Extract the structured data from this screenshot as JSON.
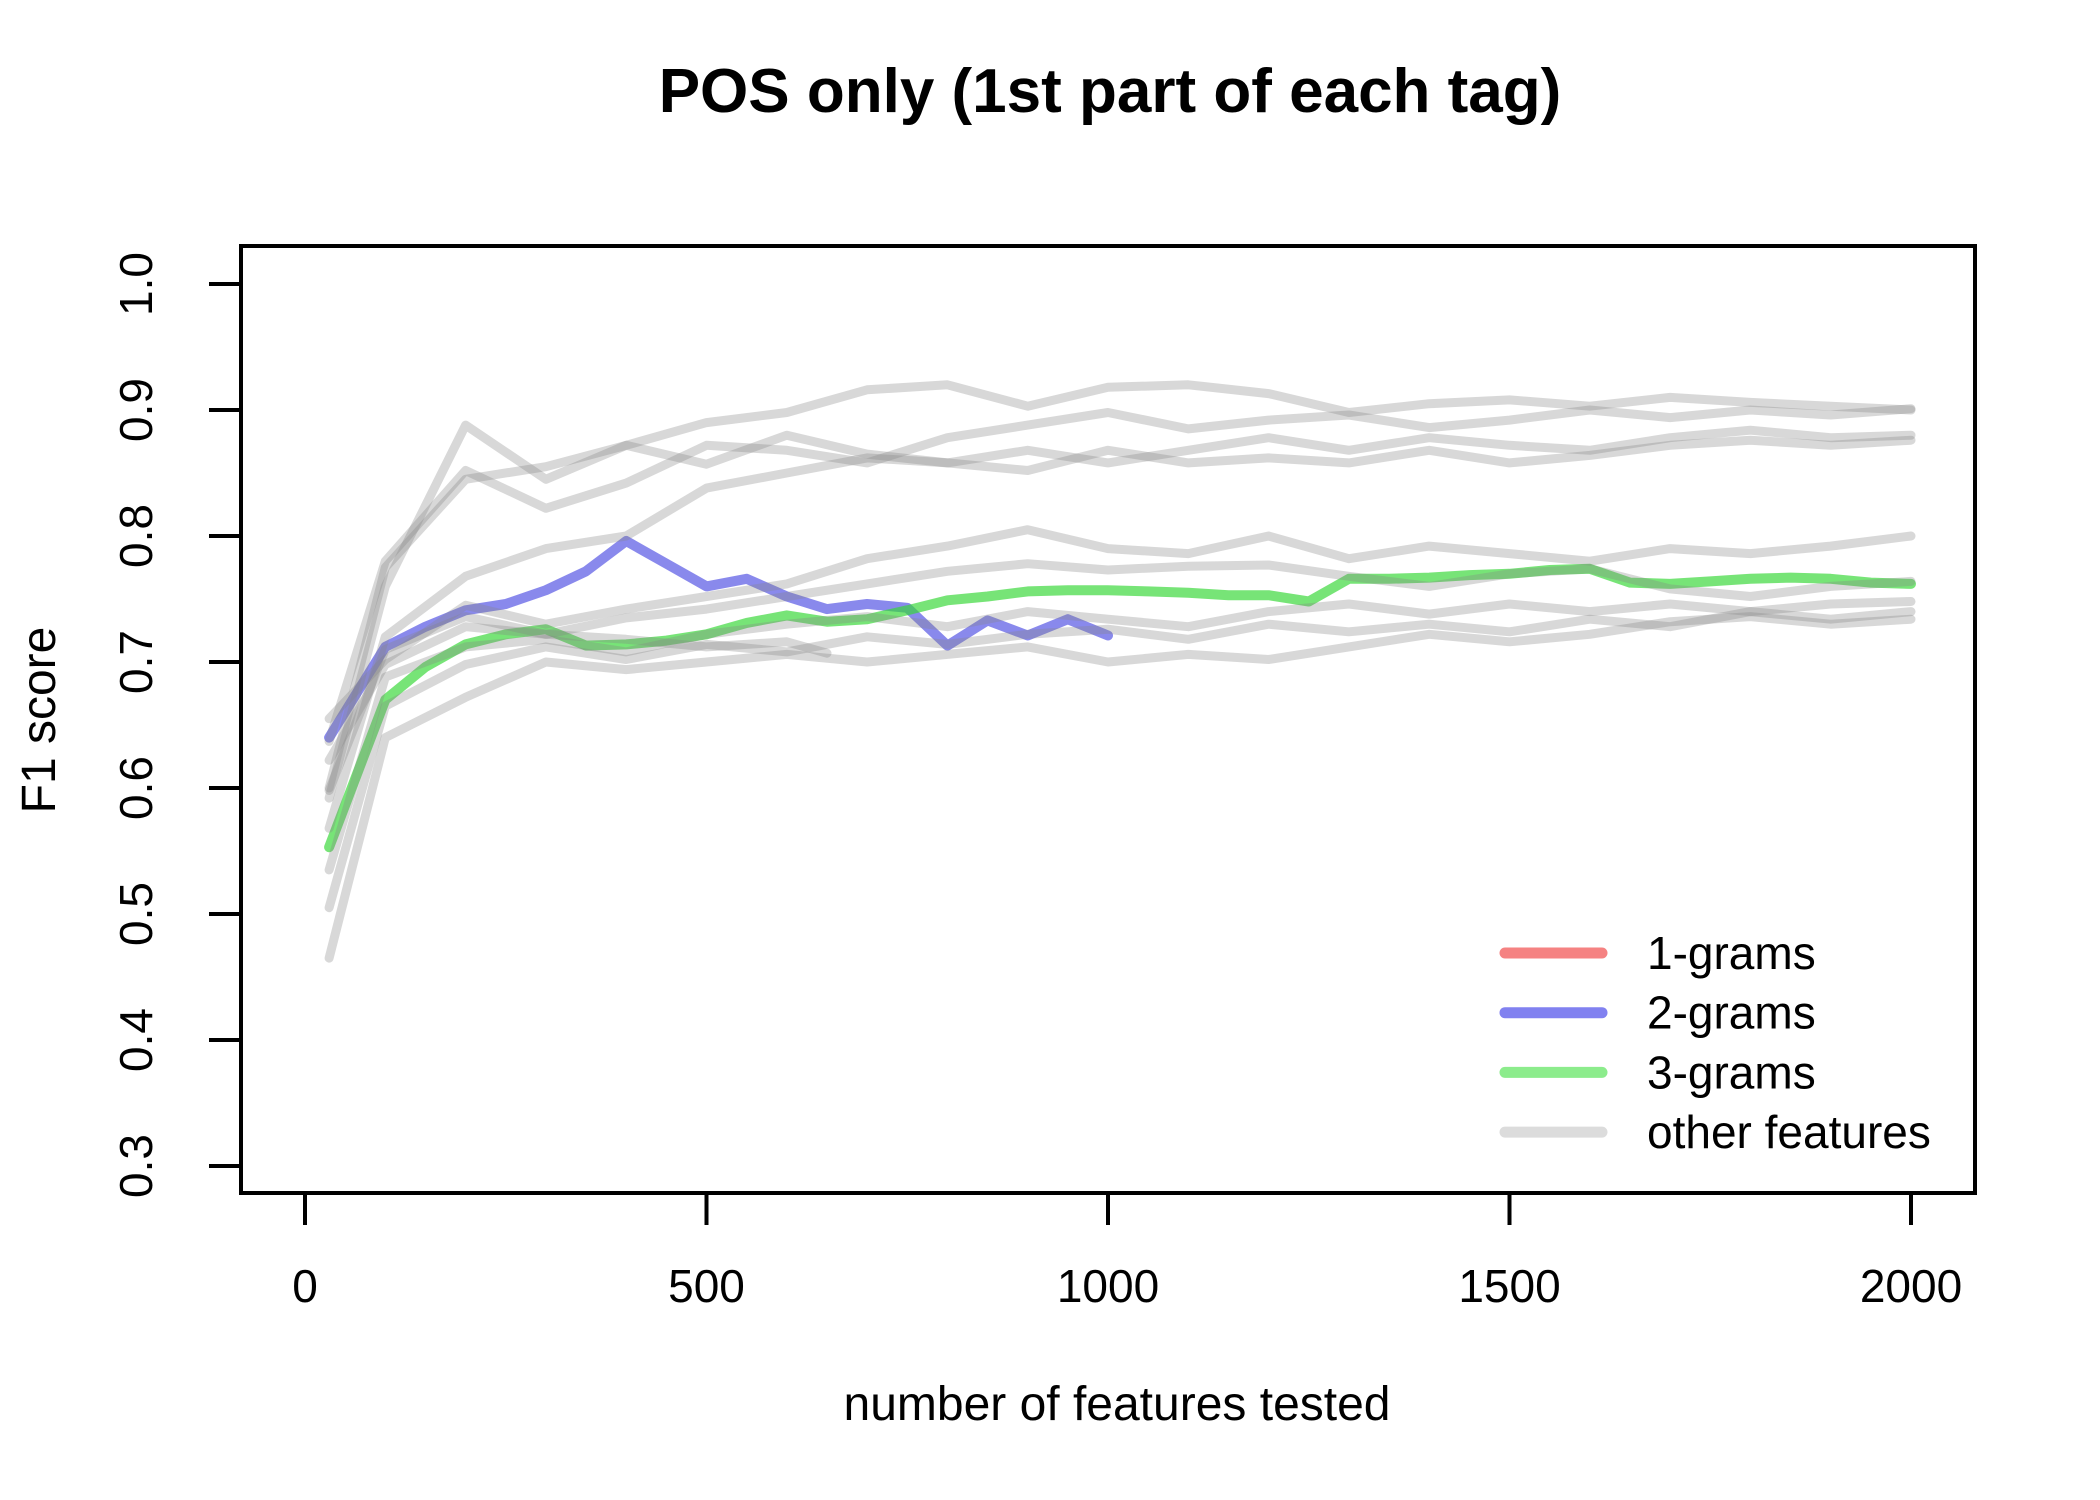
{
  "chart": {
    "title": "POS only (1st part of each tag)",
    "xlabel": "number of features tested",
    "ylabel": "F1 score"
  },
  "chart_data": {
    "type": "line",
    "title": "POS only (1st part of each tag)",
    "xlabel": "number of features tested",
    "ylabel": "F1 score",
    "grid": false,
    "background": "#ffffff",
    "frame_color": "#000000",
    "x_axis": {
      "ticks": [
        0,
        500,
        1000,
        1500,
        2000
      ],
      "range": [
        -80,
        2080
      ]
    },
    "y_axis": {
      "ticks": [
        {
          "v": 0.3,
          "label": "0.3"
        },
        {
          "v": 0.4,
          "label": "0.4"
        },
        {
          "v": 0.5,
          "label": "0.5"
        },
        {
          "v": 0.6,
          "label": "0.6"
        },
        {
          "v": 0.7,
          "label": "0.7"
        },
        {
          "v": 0.8,
          "label": "0.8"
        },
        {
          "v": 0.9,
          "label": "0.9"
        },
        {
          "v": 1.0,
          "label": "1.0"
        }
      ],
      "range": [
        0.272,
        1.028
      ]
    },
    "legend": {
      "position": "bottom-right",
      "entries": [
        {
          "label": "1-grams",
          "color": "#f58282"
        },
        {
          "label": "2-grams",
          "color": "#8181f0"
        },
        {
          "label": "3-grams",
          "color": "#8cec8c"
        },
        {
          "label": "other features",
          "color": "#dcdcdc"
        }
      ]
    },
    "series": [
      {
        "name": "1-grams",
        "color": "#f58282",
        "visible_in_plot": false,
        "points": []
      },
      {
        "name": "2-grams",
        "color": "rgba(65,65,225,0.62)",
        "visible_in_plot": true,
        "points": [
          [
            30,
            0.64
          ],
          [
            100,
            0.712
          ],
          [
            150,
            0.728
          ],
          [
            200,
            0.741
          ],
          [
            250,
            0.746
          ],
          [
            300,
            0.757
          ],
          [
            350,
            0.772
          ],
          [
            400,
            0.796
          ],
          [
            450,
            0.778
          ],
          [
            500,
            0.76
          ],
          [
            550,
            0.766
          ],
          [
            600,
            0.752
          ],
          [
            650,
            0.742
          ],
          [
            700,
            0.746
          ],
          [
            750,
            0.743
          ],
          [
            800,
            0.713
          ],
          [
            850,
            0.733
          ],
          [
            900,
            0.721
          ],
          [
            950,
            0.734
          ],
          [
            1000,
            0.721
          ]
        ]
      },
      {
        "name": "3-grams",
        "color": "rgba(55,215,55,0.68)",
        "visible_in_plot": true,
        "points": [
          [
            30,
            0.553
          ],
          [
            100,
            0.67
          ],
          [
            150,
            0.696
          ],
          [
            200,
            0.714
          ],
          [
            250,
            0.722
          ],
          [
            300,
            0.726
          ],
          [
            350,
            0.713
          ],
          [
            400,
            0.714
          ],
          [
            450,
            0.717
          ],
          [
            500,
            0.722
          ],
          [
            550,
            0.731
          ],
          [
            600,
            0.737
          ],
          [
            650,
            0.732
          ],
          [
            700,
            0.734
          ],
          [
            750,
            0.741
          ],
          [
            800,
            0.749
          ],
          [
            850,
            0.752
          ],
          [
            900,
            0.756
          ],
          [
            950,
            0.757
          ],
          [
            1000,
            0.757
          ],
          [
            1050,
            0.756
          ],
          [
            1100,
            0.755
          ],
          [
            1150,
            0.753
          ],
          [
            1200,
            0.753
          ],
          [
            1250,
            0.748
          ],
          [
            1300,
            0.766
          ],
          [
            1350,
            0.766
          ],
          [
            1400,
            0.767
          ],
          [
            1450,
            0.769
          ],
          [
            1500,
            0.77
          ],
          [
            1550,
            0.773
          ],
          [
            1600,
            0.774
          ],
          [
            1650,
            0.763
          ],
          [
            1700,
            0.762
          ],
          [
            1750,
            0.764
          ],
          [
            1800,
            0.766
          ],
          [
            1850,
            0.767
          ],
          [
            1900,
            0.766
          ],
          [
            1950,
            0.763
          ],
          [
            2000,
            0.762
          ]
        ]
      },
      {
        "name": "other features",
        "color": "rgba(135,135,135,0.32)",
        "visible_in_plot": true,
        "lines": [
          [
            [
              30,
              0.6
            ],
            [
              100,
              0.775
            ],
            [
              200,
              0.845
            ],
            [
              300,
              0.855
            ],
            [
              400,
              0.872
            ],
            [
              500,
              0.89
            ],
            [
              600,
              0.898
            ],
            [
              700,
              0.916
            ],
            [
              800,
              0.92
            ],
            [
              900,
              0.903
            ],
            [
              1000,
              0.918
            ],
            [
              1100,
              0.92
            ],
            [
              1200,
              0.913
            ],
            [
              1300,
              0.898
            ],
            [
              1400,
              0.905
            ],
            [
              1500,
              0.908
            ],
            [
              1600,
              0.903
            ],
            [
              1700,
              0.91
            ],
            [
              1800,
              0.906
            ],
            [
              1900,
              0.903
            ],
            [
              2000,
              0.9
            ]
          ],
          [
            [
              30,
              0.637
            ],
            [
              100,
              0.78
            ],
            [
              200,
              0.852
            ],
            [
              300,
              0.822
            ],
            [
              400,
              0.842
            ],
            [
              500,
              0.872
            ],
            [
              600,
              0.868
            ],
            [
              700,
              0.858
            ],
            [
              800,
              0.878
            ],
            [
              900,
              0.888
            ],
            [
              1000,
              0.898
            ],
            [
              1100,
              0.885
            ],
            [
              1200,
              0.892
            ],
            [
              1300,
              0.896
            ],
            [
              1400,
              0.886
            ],
            [
              1500,
              0.892
            ],
            [
              1600,
              0.9
            ],
            [
              1700,
              0.894
            ],
            [
              1800,
              0.9
            ],
            [
              1900,
              0.896
            ],
            [
              2000,
              0.901
            ]
          ],
          [
            [
              30,
              0.592
            ],
            [
              100,
              0.76
            ],
            [
              200,
              0.888
            ],
            [
              300,
              0.845
            ],
            [
              400,
              0.872
            ],
            [
              500,
              0.857
            ],
            [
              600,
              0.88
            ],
            [
              700,
              0.865
            ],
            [
              800,
              0.858
            ],
            [
              900,
              0.868
            ],
            [
              1000,
              0.858
            ],
            [
              1100,
              0.868
            ],
            [
              1200,
              0.878
            ],
            [
              1300,
              0.868
            ],
            [
              1400,
              0.878
            ],
            [
              1500,
              0.872
            ],
            [
              1600,
              0.868
            ],
            [
              1700,
              0.878
            ],
            [
              1800,
              0.884
            ],
            [
              1900,
              0.878
            ],
            [
              2000,
              0.88
            ]
          ],
          [
            [
              30,
              0.568
            ],
            [
              100,
              0.72
            ],
            [
              200,
              0.768
            ],
            [
              300,
              0.79
            ],
            [
              400,
              0.8
            ],
            [
              500,
              0.838
            ],
            [
              600,
              0.85
            ],
            [
              700,
              0.862
            ],
            [
              800,
              0.858
            ],
            [
              900,
              0.852
            ],
            [
              1000,
              0.868
            ],
            [
              1100,
              0.858
            ],
            [
              1200,
              0.862
            ],
            [
              1300,
              0.858
            ],
            [
              1400,
              0.868
            ],
            [
              1500,
              0.858
            ],
            [
              1600,
              0.864
            ],
            [
              1700,
              0.872
            ],
            [
              1800,
              0.876
            ],
            [
              1900,
              0.872
            ],
            [
              2000,
              0.876
            ]
          ],
          [
            [
              30,
              0.655
            ],
            [
              100,
              0.702
            ],
            [
              200,
              0.745
            ],
            [
              300,
              0.73
            ],
            [
              400,
              0.742
            ],
            [
              500,
              0.752
            ],
            [
              600,
              0.762
            ],
            [
              700,
              0.782
            ],
            [
              800,
              0.792
            ],
            [
              900,
              0.805
            ],
            [
              1000,
              0.79
            ],
            [
              1100,
              0.786
            ],
            [
              1200,
              0.8
            ],
            [
              1300,
              0.782
            ],
            [
              1400,
              0.792
            ],
            [
              1500,
              0.786
            ],
            [
              1600,
              0.78
            ],
            [
              1700,
              0.79
            ],
            [
              1800,
              0.786
            ],
            [
              1900,
              0.792
            ],
            [
              2000,
              0.8
            ]
          ],
          [
            [
              30,
              0.622
            ],
            [
              100,
              0.698
            ],
            [
              200,
              0.728
            ],
            [
              300,
              0.722
            ],
            [
              400,
              0.735
            ],
            [
              500,
              0.742
            ],
            [
              600,
              0.752
            ],
            [
              700,
              0.762
            ],
            [
              800,
              0.772
            ],
            [
              900,
              0.778
            ],
            [
              1000,
              0.773
            ],
            [
              1100,
              0.776
            ],
            [
              1200,
              0.777
            ],
            [
              1300,
              0.768
            ],
            [
              1400,
              0.76
            ],
            [
              1500,
              0.77
            ],
            [
              1600,
              0.774
            ],
            [
              1700,
              0.758
            ],
            [
              1800,
              0.752
            ],
            [
              1900,
              0.76
            ],
            [
              2000,
              0.764
            ]
          ],
          [
            [
              30,
              0.535
            ],
            [
              100,
              0.688
            ],
            [
              200,
              0.712
            ],
            [
              300,
              0.718
            ],
            [
              400,
              0.708
            ],
            [
              500,
              0.722
            ],
            [
              600,
              0.73
            ],
            [
              700,
              0.736
            ],
            [
              800,
              0.728
            ],
            [
              900,
              0.74
            ],
            [
              1000,
              0.734
            ],
            [
              1100,
              0.728
            ],
            [
              1200,
              0.74
            ],
            [
              1300,
              0.746
            ],
            [
              1400,
              0.738
            ],
            [
              1500,
              0.746
            ],
            [
              1600,
              0.74
            ],
            [
              1700,
              0.746
            ],
            [
              1800,
              0.74
            ],
            [
              1900,
              0.746
            ],
            [
              2000,
              0.748
            ]
          ],
          [
            [
              30,
              0.505
            ],
            [
              100,
              0.665
            ],
            [
              200,
              0.698
            ],
            [
              300,
              0.712
            ],
            [
              400,
              0.702
            ],
            [
              500,
              0.714
            ],
            [
              600,
              0.708
            ],
            [
              700,
              0.72
            ],
            [
              800,
              0.714
            ],
            [
              900,
              0.722
            ],
            [
              1000,
              0.726
            ],
            [
              1100,
              0.718
            ],
            [
              1200,
              0.73
            ],
            [
              1300,
              0.724
            ],
            [
              1400,
              0.73
            ],
            [
              1500,
              0.724
            ],
            [
              1600,
              0.734
            ],
            [
              1700,
              0.728
            ],
            [
              1800,
              0.74
            ],
            [
              1900,
              0.734
            ],
            [
              2000,
              0.74
            ]
          ],
          [
            [
              30,
              0.465
            ],
            [
              100,
              0.64
            ],
            [
              200,
              0.672
            ],
            [
              300,
              0.7
            ],
            [
              400,
              0.694
            ],
            [
              500,
              0.7
            ],
            [
              600,
              0.706
            ],
            [
              700,
              0.7
            ],
            [
              800,
              0.706
            ],
            [
              900,
              0.712
            ],
            [
              1000,
              0.7
            ],
            [
              1100,
              0.706
            ],
            [
              1200,
              0.702
            ],
            [
              1300,
              0.712
            ],
            [
              1400,
              0.722
            ],
            [
              1500,
              0.716
            ],
            [
              1600,
              0.722
            ],
            [
              1700,
              0.732
            ],
            [
              1800,
              0.736
            ],
            [
              1900,
              0.73
            ],
            [
              2000,
              0.734
            ]
          ],
          [
            [
              30,
              0.598
            ],
            [
              100,
              0.71
            ],
            [
              200,
              0.736
            ],
            [
              300,
              0.722
            ],
            [
              400,
              0.718
            ],
            [
              500,
              0.712
            ],
            [
              600,
              0.716
            ],
            [
              650,
              0.707
            ]
          ]
        ]
      }
    ]
  }
}
